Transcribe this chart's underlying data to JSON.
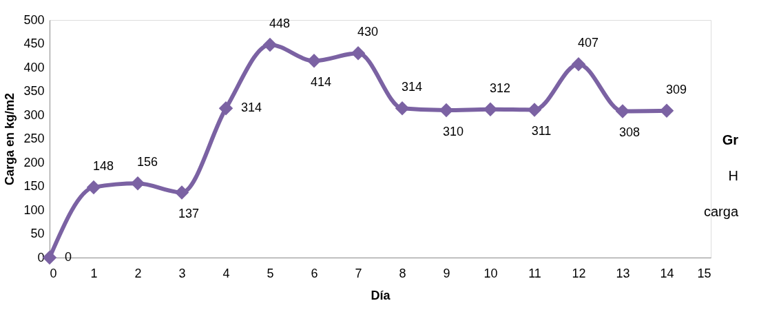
{
  "chart_data": {
    "type": "line",
    "xlabel": "Día",
    "ylabel": "Carga en kg/m2",
    "x": [
      0,
      1,
      2,
      3,
      4,
      5,
      6,
      7,
      8,
      9,
      10,
      11,
      12,
      13,
      14
    ],
    "series": [
      {
        "color": "#7b62a3",
        "values": [
          0,
          148,
          156,
          137,
          314,
          448,
          414,
          430,
          314,
          310,
          312,
          311,
          407,
          308,
          309
        ]
      }
    ],
    "xlim": [
      0,
      15
    ],
    "xticks": [
      0,
      1,
      2,
      3,
      4,
      5,
      6,
      7,
      8,
      9,
      10,
      11,
      12,
      13,
      14,
      15
    ],
    "ylim": [
      0,
      500
    ],
    "yticks": [
      0,
      50,
      100,
      150,
      200,
      250,
      300,
      350,
      400,
      450,
      500
    ],
    "grid": false,
    "marker": "diamond",
    "line_style": "solid",
    "data_labels": true,
    "annotations": [
      "Gr",
      "H",
      "carga"
    ]
  }
}
